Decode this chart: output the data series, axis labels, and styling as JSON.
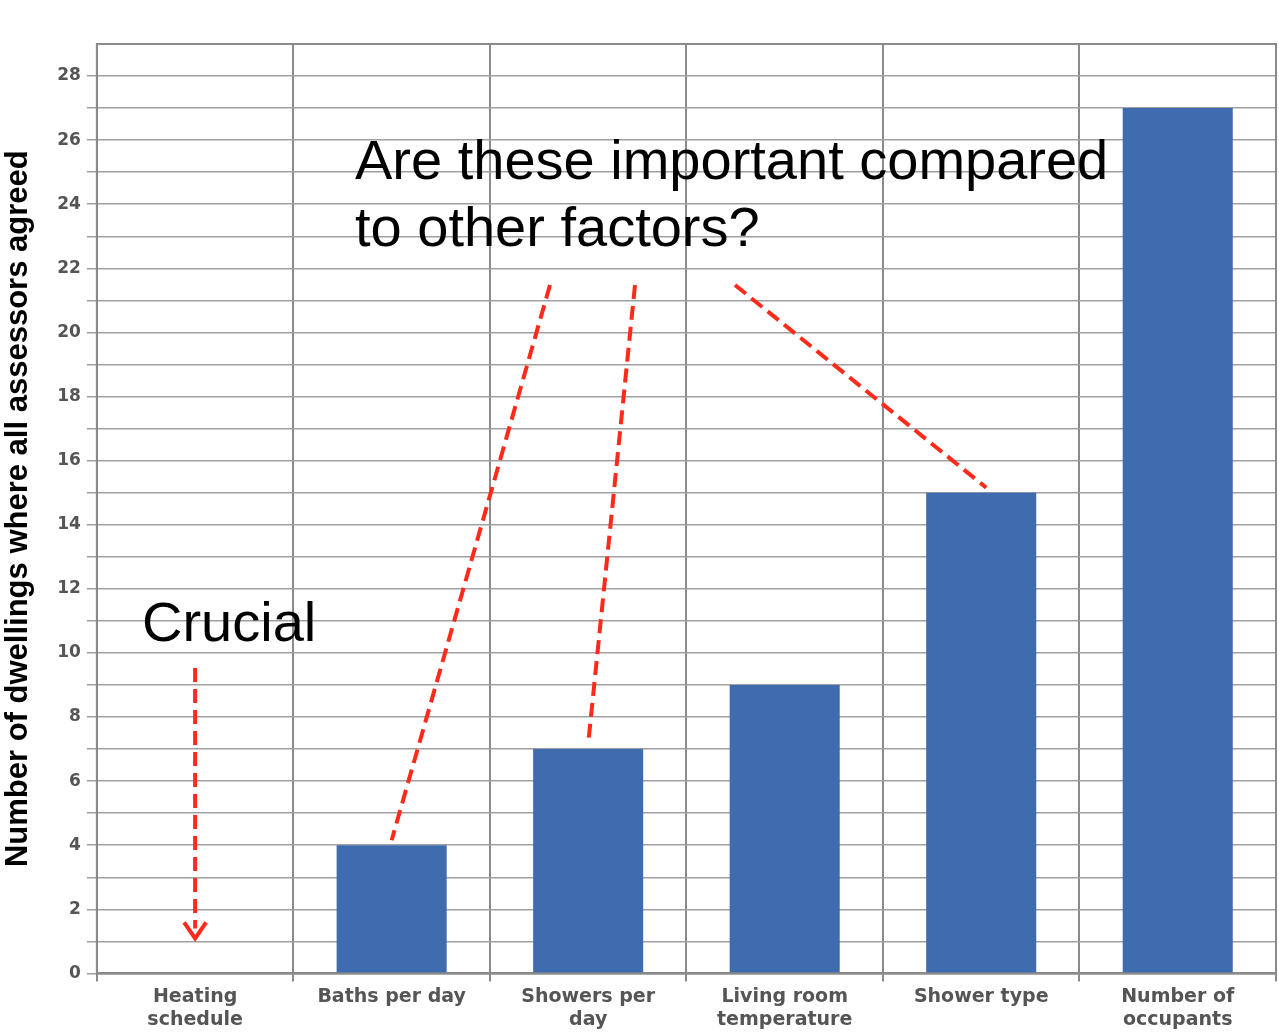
{
  "chart_data": {
    "type": "bar",
    "ylabel": "Number of dwellings where all assessors agreed",
    "categories": [
      "Heating schedule",
      "Baths per day",
      "Showers per day",
      "Living room temperature",
      "Shower type",
      "Number of occupants"
    ],
    "values": [
      0,
      4,
      7,
      9,
      15,
      27
    ],
    "color": "#3f6baf",
    "ylim": [
      0,
      29
    ],
    "yticks": [
      0,
      {
        "value": 1,
        "label": null
      },
      2,
      {
        "value": 3,
        "label": null
      },
      4,
      {
        "value": 5,
        "label": null
      },
      6,
      {
        "value": 7,
        "label": null
      },
      8,
      {
        "value": 9,
        "label": null
      },
      10,
      {
        "value": 11,
        "label": null
      },
      12,
      {
        "value": 13,
        "label": null
      },
      14,
      {
        "value": 15,
        "label": null
      },
      16,
      {
        "value": 17,
        "label": null
      },
      18,
      {
        "value": 19,
        "label": null
      },
      20,
      {
        "value": 21,
        "label": null
      },
      22,
      {
        "value": 23,
        "label": null
      },
      24,
      {
        "value": 25,
        "label": null
      },
      26,
      {
        "value": 27,
        "label": null
      },
      28
    ],
    "grid": true,
    "annotations": [
      "Are these important compared to other factors?",
      "Crucial"
    ]
  }
}
